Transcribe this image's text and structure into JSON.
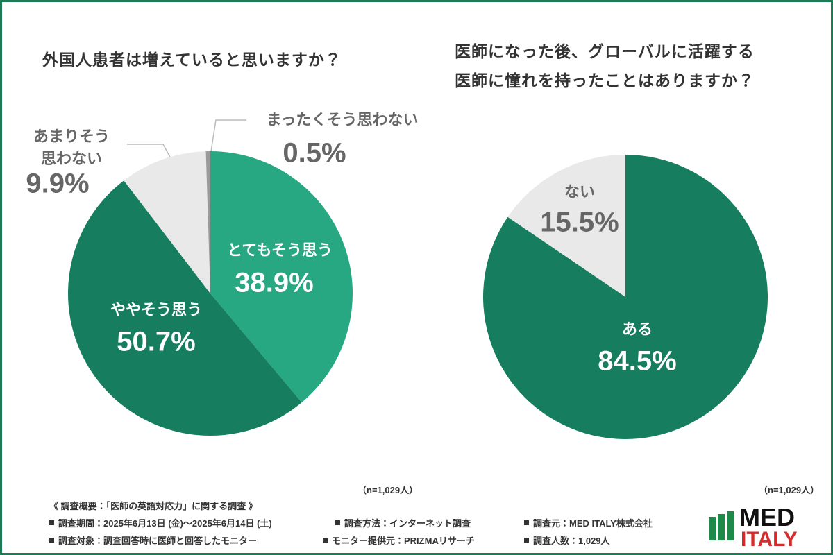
{
  "chart_data": [
    {
      "type": "pie",
      "title": "外国人患者は増えていると思いますか？",
      "note": "（n=1,029人）",
      "categories": [
        "とてもそう思う",
        "ややそう思う",
        "あまりそう\n思わない",
        "まったくそう思わない"
      ],
      "values": [
        38.9,
        50.7,
        9.9,
        0.5
      ],
      "value_labels": [
        "38.9%",
        "50.7%",
        "9.9%",
        "0.5%"
      ],
      "colors": [
        "#27a882",
        "#167d5e",
        "#e9e9e9",
        "#9a9a9a"
      ]
    },
    {
      "type": "pie",
      "title": "医師になった後、グローバルに活躍する\n医師に憧れを持ったことはありますか？",
      "note": "（n=1,029人）",
      "categories": [
        "ある",
        "ない"
      ],
      "values": [
        84.5,
        15.5
      ],
      "value_labels": [
        "84.5%",
        "15.5%"
      ],
      "colors": [
        "#167d5e",
        "#e9e9e9"
      ]
    }
  ],
  "footer": {
    "heading": "《 調査概要：「医師の英語対応力」に関する調査 》",
    "items": [
      "調査期間：2025年6月13日 (金)〜2025年6月14日 (土)",
      "調査方法：インターネット調査",
      "調査元：MED ITALY株式会社",
      "調査対象：調査回答時に医師と回答したモニター",
      "モニター提供元：PRIZMAリサーチ",
      "調査人数：1,029人"
    ]
  },
  "logo": {
    "top": "MED",
    "bottom": "ITALY"
  }
}
